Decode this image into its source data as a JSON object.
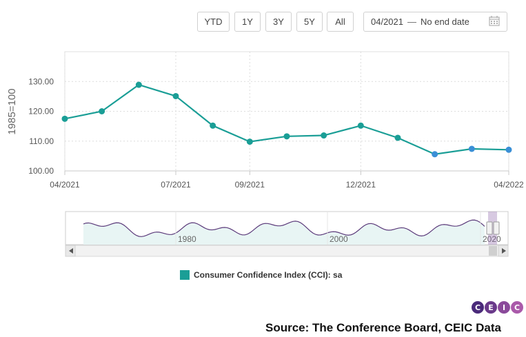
{
  "toolbar": {
    "range_buttons": [
      "YTD",
      "1Y",
      "3Y",
      "5Y",
      "All"
    ],
    "date_start": "04/2021",
    "date_end": "No end date"
  },
  "colors": {
    "series": "#1a9e96",
    "recent_points": "#3a8fd6",
    "navigator_line": "#5b3a7a",
    "navigator_fill": "#e8f5f4",
    "ceic_circles": [
      "#4a2a7a",
      "#6a3a8a",
      "#8a4a9a",
      "#aa5aaa"
    ]
  },
  "chart_data": {
    "type": "line",
    "title": "",
    "ylabel": "1985=100",
    "xlabel": "",
    "ylim": [
      100,
      140
    ],
    "y_ticks": [
      100,
      110,
      120,
      130
    ],
    "y_tick_labels": [
      "100.00",
      "110.00",
      "120.00",
      "130.00"
    ],
    "x_ticks": [
      "04/2021",
      "07/2021",
      "09/2021",
      "12/2021",
      "04/2022"
    ],
    "x": [
      "04/2021",
      "05/2021",
      "06/2021",
      "07/2021",
      "08/2021",
      "09/2021",
      "10/2021",
      "11/2021",
      "12/2021",
      "01/2022",
      "02/2022",
      "03/2022",
      "04/2022"
    ],
    "series": [
      {
        "name": "Consumer Confidence Index (CCI): sa",
        "values": [
          117.5,
          120.0,
          128.9,
          125.1,
          115.2,
          109.8,
          111.6,
          111.9,
          115.2,
          111.1,
          105.6,
          107.4,
          107.1
        ]
      }
    ],
    "navigator": {
      "x_ticks": [
        "1980",
        "2000",
        "2020"
      ]
    },
    "legend": "bottom-center"
  },
  "legend": {
    "label": "Consumer Confidence Index (CCI): sa"
  },
  "branding": {
    "letters": [
      "C",
      "E",
      "I",
      "C"
    ]
  },
  "source": {
    "text": "Source: The Conference Board, CEIC Data"
  }
}
